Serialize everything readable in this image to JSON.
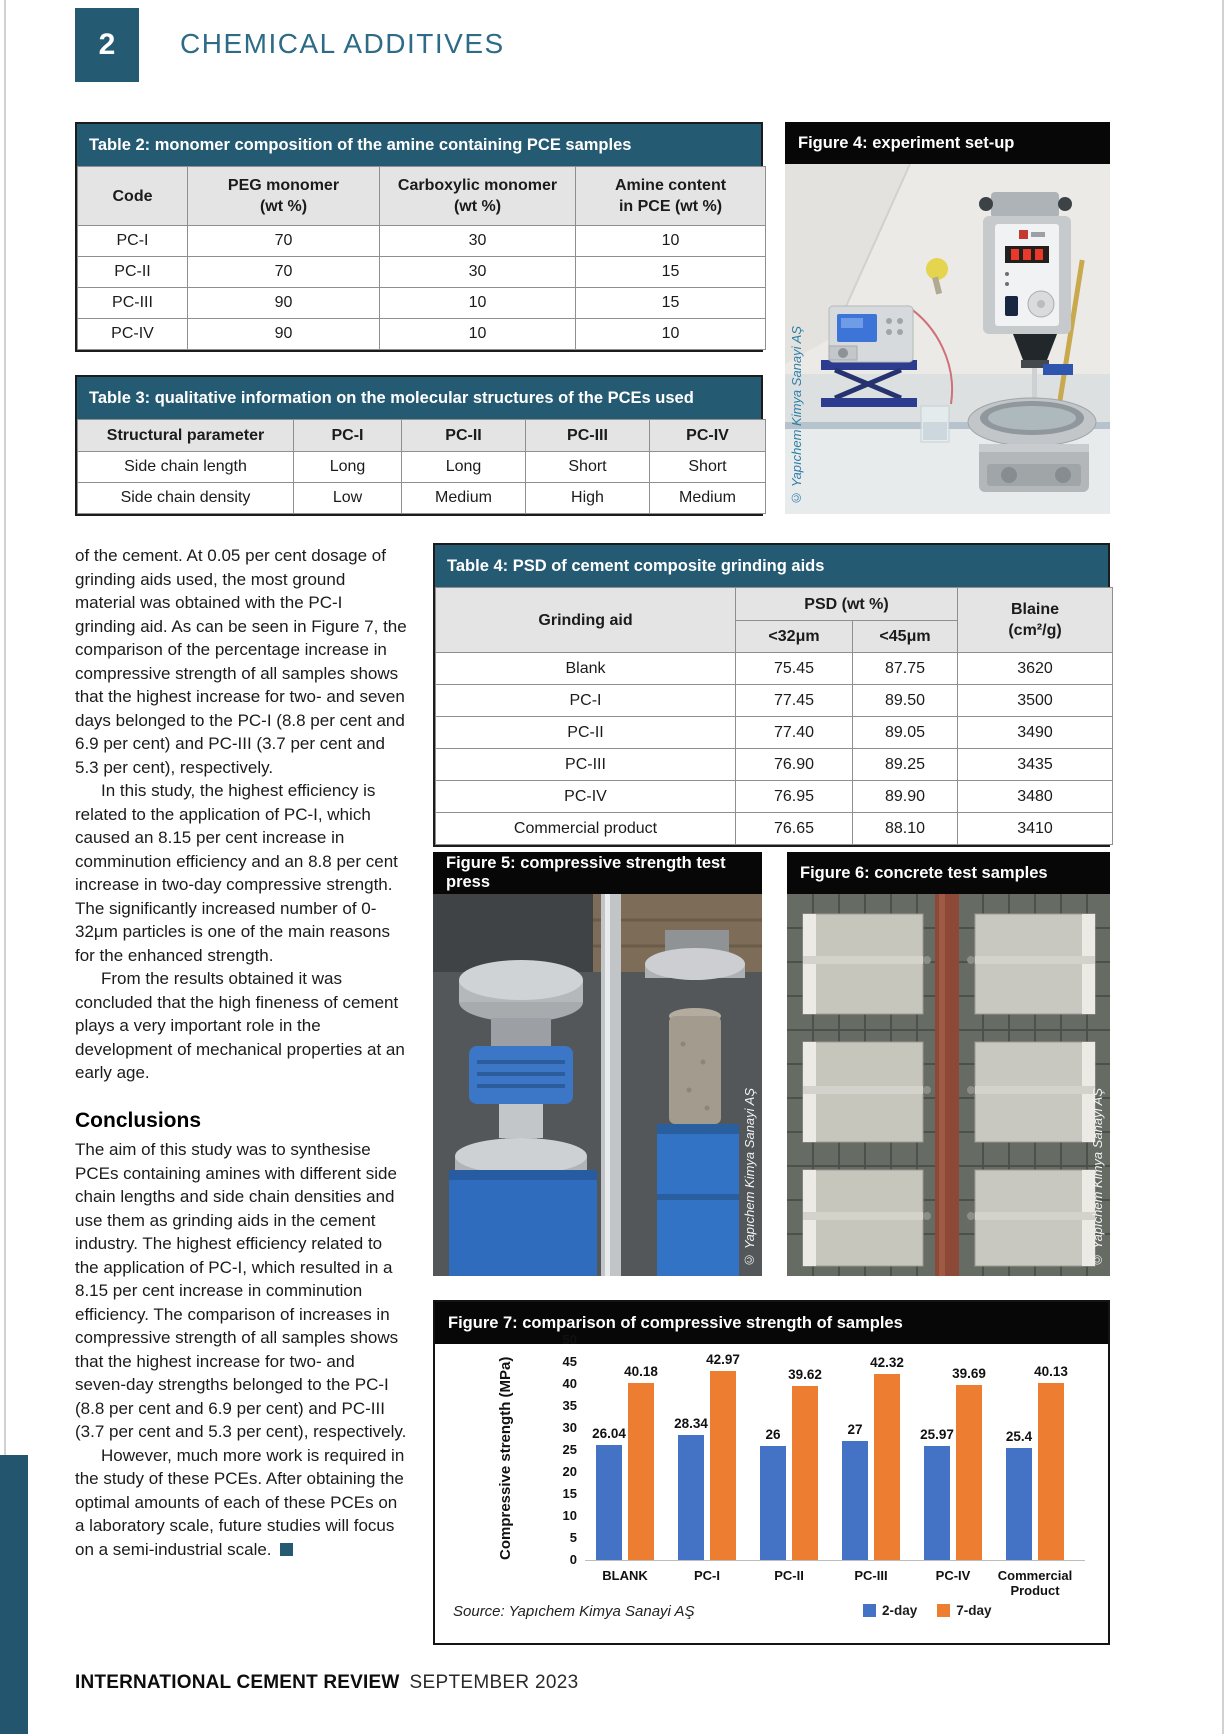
{
  "page": {
    "number": "2",
    "section": "CHEMICAL ADDITIVES",
    "footer": {
      "magazine": "INTERNATIONAL CEMENT REVIEW",
      "issue": "SEPTEMBER 2023"
    }
  },
  "colors": {
    "teal_header": "#255a73",
    "section_title": "#2d6b86",
    "caption_bar": "#070707",
    "bar_blue": "#4472c4",
    "bar_orange": "#ed7d31"
  },
  "table2": {
    "title": "Table 2: monomer composition of the amine containing PCE samples",
    "headers": [
      [
        "Code"
      ],
      [
        "PEG monomer",
        "(wt %)"
      ],
      [
        "Carboxylic monomer",
        "(wt %)"
      ],
      [
        "Amine content",
        "in PCE (wt %)"
      ]
    ],
    "rows": [
      [
        "PC-I",
        "70",
        "30",
        "10"
      ],
      [
        "PC-II",
        "70",
        "30",
        "15"
      ],
      [
        "PC-III",
        "90",
        "10",
        "15"
      ],
      [
        "PC-IV",
        "90",
        "10",
        "10"
      ]
    ]
  },
  "table3": {
    "title": "Table 3: qualitative information on the molecular structures of the PCEs used",
    "headers": [
      [
        "Structural parameter"
      ],
      [
        "PC-I"
      ],
      [
        "PC-II"
      ],
      [
        "PC-III"
      ],
      [
        "PC-IV"
      ]
    ],
    "rows": [
      [
        "Side chain length",
        "Long",
        "Long",
        "Short",
        "Short"
      ],
      [
        "Side chain density",
        "Low",
        "Medium",
        "High",
        "Medium"
      ]
    ]
  },
  "table4": {
    "title": "Table 4: PSD of cement composite grinding aids",
    "col1": "Grinding aid",
    "group": "PSD (wt %)",
    "sub1": "<32μm",
    "sub2": "<45μm",
    "col4_line1": "Blaine",
    "col4_line2": "(cm²/g)",
    "rows": [
      [
        "Blank",
        "75.45",
        "87.75",
        "3620"
      ],
      [
        "PC-I",
        "77.45",
        "89.50",
        "3500"
      ],
      [
        "PC-II",
        "77.40",
        "89.05",
        "3490"
      ],
      [
        "PC-III",
        "76.90",
        "89.25",
        "3435"
      ],
      [
        "PC-IV",
        "76.95",
        "89.90",
        "3480"
      ],
      [
        "Commercial product",
        "76.65",
        "88.10",
        "3410"
      ]
    ]
  },
  "figures": {
    "fig4": {
      "caption": "Figure 4: experiment set-up",
      "credit": "© Yapıchem Kimya Sanayi AŞ"
    },
    "fig5": {
      "caption": "Figure 5: compressive strength test press",
      "credit": "© Yapıchem Kimya Sanayi AŞ"
    },
    "fig6": {
      "caption": "Figure 6: concrete test samples",
      "credit": "© Yapıchem Kimya Sanayi AŞ"
    },
    "fig7": {
      "caption": "Figure 7: comparison of compressive strength of samples"
    }
  },
  "article": {
    "blocks": [
      {
        "type": "p",
        "indent": false,
        "text": "of the cement. At 0.05 per cent dosage of grinding aids used, the most ground material was obtained with the PC-I grinding aid. As can be seen in Figure 7, the comparison of the percentage increase in compressive strength of all samples shows that the highest increase for two- and seven days belonged to the PC-I (8.8 per cent and 6.9 per cent) and PC-III (3.7 per cent and 5.3 per cent), respectively."
      },
      {
        "type": "p",
        "indent": true,
        "text": "In this study, the highest efficiency is related to the application of PC-I, which caused an 8.15 per cent increase in comminution efficiency and an 8.8 per cent increase in two-day compressive strength. The significantly increased number of 0-32μm particles is one of the main reasons for the enhanced strength."
      },
      {
        "type": "p",
        "indent": true,
        "text": "From the results obtained it was concluded that the high fineness of cement plays a very important role in the development of mechanical properties at an early age."
      },
      {
        "type": "h",
        "text": "Conclusions"
      },
      {
        "type": "p",
        "indent": false,
        "text": "The aim of this study was to synthesise PCEs containing amines with different side chain lengths and side chain densities and use them as grinding aids in the cement industry. The highest efficiency related to the application of PC-I, which resulted in a 8.15 per cent increase in comminution efficiency. The comparison of increases in compressive strength of all samples shows that the highest increase for two- and seven-day strengths belonged to the PC-I (8.8 per cent and 6.9 per cent) and PC-III (3.7 per cent and 5.3 per cent), respectively."
      },
      {
        "type": "p",
        "indent": true,
        "endmark": true,
        "text": "However, much more work is required in the study of these PCEs. After obtaining the optimal amounts of each of these PCEs on a laboratory scale, future studies will focus on a semi-industrial scale."
      }
    ]
  },
  "chart_data": {
    "type": "bar",
    "title": "Figure 7: comparison of compressive strength of samples",
    "categories": [
      "BLANK",
      "PC-I",
      "PC-II",
      "PC-III",
      "PC-IV",
      "Commercial Product"
    ],
    "series": [
      {
        "name": "2-day",
        "color": "#4472c4",
        "values": [
          26.04,
          28.34,
          26,
          27,
          25.97,
          25.4
        ]
      },
      {
        "name": "7-day",
        "color": "#ed7d31",
        "values": [
          40.18,
          42.97,
          39.62,
          42.32,
          39.69,
          40.13
        ]
      }
    ],
    "ylabel": "Compressive strength (MPa)",
    "xlabel": "",
    "ylim": [
      0,
      50
    ],
    "ytick_step": 5,
    "grid": false,
    "legend_position": "bottom",
    "source": "Source: Yapıchem Kimya Sanayi AŞ"
  }
}
